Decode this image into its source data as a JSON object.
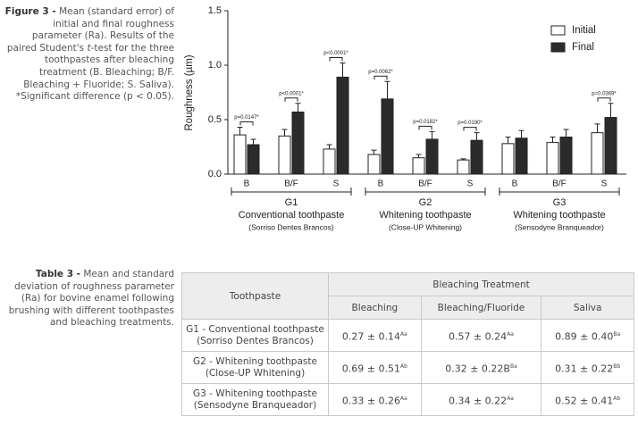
{
  "figure": {
    "caption_label": "Figure 3 -",
    "caption_before": "Mean (standard error) of initial and final roughness parameter (Ra). Results of the paired Student's ",
    "caption_italic": "t",
    "caption_after": "-test for the three toothpastes after bleaching treatment (B. Bleaching; B/F. Bleaching + Fluoride; S. Saliva). *Significant difference (p < 0.05).",
    "chart_data": {
      "type": "bar",
      "y_label": "Roughness (µm)",
      "categories": [
        "B",
        "B/F",
        "S",
        "B",
        "B/F",
        "S",
        "B",
        "B/F",
        "S"
      ],
      "series": [
        {
          "name": "Initial",
          "color": "#ffffff",
          "values": [
            0.36,
            0.35,
            0.23,
            0.18,
            0.15,
            0.13,
            0.28,
            0.29,
            0.38
          ],
          "errors": [
            0.07,
            0.06,
            0.04,
            0.04,
            0.03,
            0.01,
            0.06,
            0.05,
            0.08
          ]
        },
        {
          "name": "Final",
          "color": "#2b2b2b",
          "values": [
            0.27,
            0.57,
            0.89,
            0.69,
            0.32,
            0.31,
            0.33,
            0.34,
            0.52
          ],
          "errors": [
            0.05,
            0.08,
            0.13,
            0.16,
            0.07,
            0.07,
            0.07,
            0.07,
            0.13
          ]
        }
      ],
      "p_values": [
        "p=0.0147*",
        "p<0.0001*",
        "p<0.0001*",
        "p=0.0062*",
        "p=0.0182*",
        "p=0.0190*",
        null,
        null,
        "p=0.0369*"
      ],
      "groups": [
        {
          "label": "G1",
          "name": "Conventional toothpaste",
          "brand": "(Sorriso Dentes Brancos)"
        },
        {
          "label": "G2",
          "name": "Whitening toothpaste",
          "brand": "(Close-UP Whitening)"
        },
        {
          "label": "G3",
          "name": "Whitening toothpaste",
          "brand": "(Sensodyne Branqueador)"
        }
      ],
      "ylim": [
        0,
        1.5
      ],
      "yticks": [
        {
          "value": 0,
          "label": "0.0"
        },
        0.5,
        {
          "value": 1,
          "label": "1.0"
        },
        1.5
      ],
      "legend": "top-right"
    }
  },
  "table": {
    "caption_label": "Table 3 -",
    "caption_text": "Mean and standard deviation of roughness parameter (Ra) for bovine enamel following brushing with different toothpastes and bleaching treatments.",
    "header": [
      "Toothpaste",
      "Bleaching Treatment"
    ],
    "columns": [
      "Bleaching",
      "Bleaching/Fluoride",
      "Saliva"
    ],
    "rows": [
      {
        "name": "G1 - Conventional toothpaste",
        "brand": "(Sorriso Dentes Brancos)",
        "cells": [
          {
            "text": "0.27 ± 0.14",
            "sup": "Aa"
          },
          {
            "text": "0.57 ± 0.24",
            "sup": "Aa"
          },
          {
            "text": "0.89 ± 0.40",
            "sup": "Ba"
          }
        ]
      },
      {
        "name": "G2 - Whitening toothpaste",
        "brand": "(Close-UP Whitening)",
        "cells": [
          {
            "text": "0.69 ± 0.51",
            "sup": "Ab"
          },
          {
            "text": "0.32 ± 0.22B",
            "sup": "Ba"
          },
          {
            "text": "0.31 ± 0.22",
            "sup": "Bb"
          }
        ]
      },
      {
        "name": "G3 - Whitening toothpaste",
        "brand": "(Sensodyne Branqueador)",
        "cells": [
          {
            "text": "0.33 ± 0.26",
            "sup": "Aa"
          },
          {
            "text": "0.34 ± 0.22",
            "sup": "Aa"
          },
          {
            "text": "0.52 ± 0.41",
            "sup": "Ab"
          }
        ]
      }
    ]
  }
}
